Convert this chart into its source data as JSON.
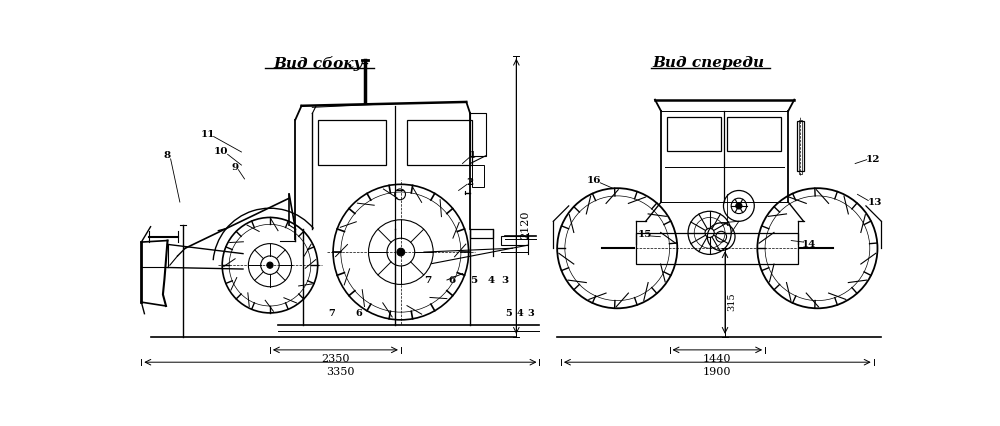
{
  "title_side": "Вид сбоку",
  "title_front": "Вид спереди",
  "bg_color": "#ffffff",
  "dim_2120": "2120",
  "dim_2350": "2350",
  "dim_3350": "3350",
  "dim_315": "315",
  "dim_1440": "1440",
  "dim_1900": "1900",
  "figsize": [
    10.0,
    4.26
  ],
  "dpi": 100
}
